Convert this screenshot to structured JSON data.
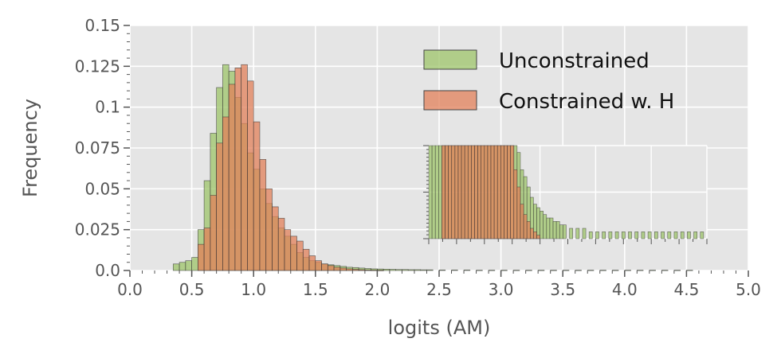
{
  "chart_data": {
    "type": "bar",
    "title": "",
    "xlabel": "logits (AM)",
    "ylabel": "Frequency",
    "xlim": [
      0,
      5
    ],
    "ylim": [
      0,
      0.15
    ],
    "grid": true,
    "legend_position": "top-right",
    "x_ticks": [
      "0.0",
      "0.5",
      "1.0",
      "1.5",
      "2.0",
      "2.5",
      "3.0",
      "3.5",
      "4.0",
      "4.5",
      "5.0"
    ],
    "y_ticks": [
      "0.0",
      "0.025",
      "0.05",
      "0.075",
      "0.1",
      "0.125",
      "0.15"
    ],
    "bin_width": 0.05,
    "series": [
      {
        "name": "Unconstrained",
        "color": "#9dc46a",
        "bins": [
          [
            0.35,
            0.004
          ],
          [
            0.4,
            0.005
          ],
          [
            0.45,
            0.006
          ],
          [
            0.5,
            0.008
          ],
          [
            0.55,
            0.025
          ],
          [
            0.6,
            0.055
          ],
          [
            0.65,
            0.084
          ],
          [
            0.7,
            0.112
          ],
          [
            0.75,
            0.126
          ],
          [
            0.8,
            0.122
          ],
          [
            0.85,
            0.106
          ],
          [
            0.9,
            0.09
          ],
          [
            0.95,
            0.072
          ],
          [
            1.0,
            0.062
          ],
          [
            1.05,
            0.05
          ],
          [
            1.1,
            0.041
          ],
          [
            1.15,
            0.033
          ],
          [
            1.2,
            0.026
          ],
          [
            1.25,
            0.021
          ],
          [
            1.3,
            0.016
          ],
          [
            1.35,
            0.011
          ],
          [
            1.4,
            0.008
          ],
          [
            1.45,
            0.006
          ],
          [
            1.5,
            0.005
          ],
          [
            1.55,
            0.004
          ],
          [
            1.6,
            0.0035
          ],
          [
            1.65,
            0.003
          ],
          [
            1.7,
            0.0025
          ],
          [
            1.75,
            0.002
          ],
          [
            1.8,
            0.0018
          ],
          [
            1.85,
            0.0015
          ],
          [
            1.9,
            0.0012
          ],
          [
            1.95,
            0.001
          ],
          [
            2.0,
            0.0009
          ],
          [
            2.05,
            0.0008
          ],
          [
            2.1,
            0.0007
          ],
          [
            2.15,
            0.0006
          ],
          [
            2.2,
            0.0006
          ],
          [
            2.25,
            0.0005
          ],
          [
            2.3,
            0.0005
          ],
          [
            2.35,
            0.0004
          ],
          [
            2.4,
            0.0004
          ],
          [
            2.5,
            0.0003
          ],
          [
            2.6,
            0.0003
          ],
          [
            2.7,
            0.0003
          ],
          [
            2.8,
            0.0002
          ],
          [
            2.9,
            0.0002
          ],
          [
            3.0,
            0.0002
          ],
          [
            3.1,
            0.0002
          ],
          [
            3.2,
            0.0002
          ],
          [
            3.3,
            0.0002
          ],
          [
            3.4,
            0.0002
          ],
          [
            3.5,
            0.0002
          ],
          [
            3.6,
            0.0002
          ],
          [
            3.7,
            0.0002
          ],
          [
            3.8,
            0.0002
          ],
          [
            3.9,
            0.0002
          ],
          [
            4.0,
            0.0002
          ],
          [
            4.1,
            0.0002
          ],
          [
            4.2,
            0.0002
          ],
          [
            4.3,
            0.0002
          ],
          [
            4.4,
            0.0002
          ],
          [
            4.5,
            0.0002
          ]
        ]
      },
      {
        "name": "Constrained w. H",
        "color": "#e1805a",
        "bins": [
          [
            0.55,
            0.016
          ],
          [
            0.6,
            0.026
          ],
          [
            0.65,
            0.046
          ],
          [
            0.7,
            0.078
          ],
          [
            0.75,
            0.094
          ],
          [
            0.8,
            0.114
          ],
          [
            0.85,
            0.124
          ],
          [
            0.9,
            0.126
          ],
          [
            0.95,
            0.116
          ],
          [
            1.0,
            0.091
          ],
          [
            1.05,
            0.068
          ],
          [
            1.1,
            0.05
          ],
          [
            1.15,
            0.039
          ],
          [
            1.2,
            0.032
          ],
          [
            1.25,
            0.025
          ],
          [
            1.3,
            0.021
          ],
          [
            1.35,
            0.018
          ],
          [
            1.4,
            0.013
          ],
          [
            1.45,
            0.009
          ],
          [
            1.5,
            0.006
          ],
          [
            1.55,
            0.004
          ],
          [
            1.6,
            0.003
          ],
          [
            1.65,
            0.002
          ],
          [
            1.7,
            0.0015
          ],
          [
            1.75,
            0.001
          ],
          [
            1.8,
            0.0007
          ],
          [
            1.85,
            0.0005
          ],
          [
            1.9,
            0.0003
          ],
          [
            1.95,
            0.0002
          ],
          [
            2.0,
            0.0001
          ]
        ]
      }
    ],
    "inset": {
      "description_tick_count": 13,
      "ylim_fraction_of_main": 0.018
    }
  }
}
